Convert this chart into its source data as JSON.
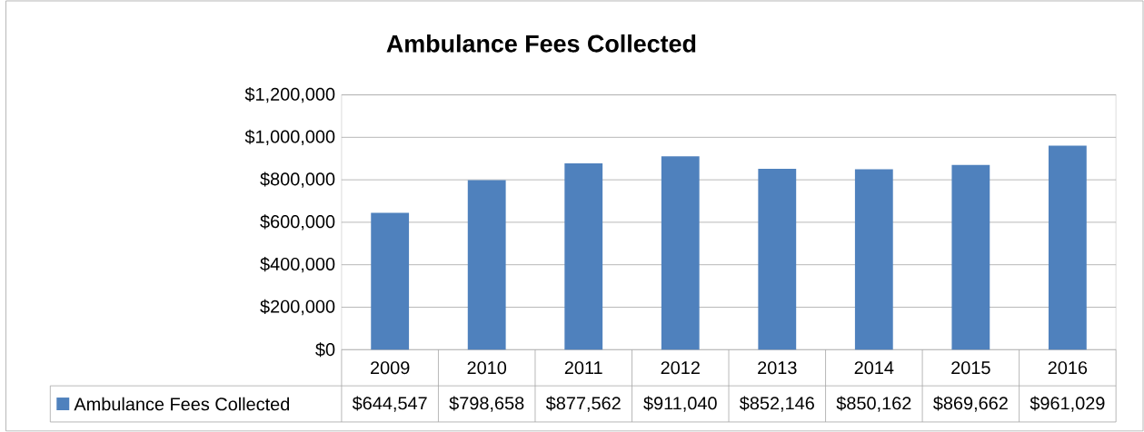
{
  "chart_data": {
    "type": "bar",
    "title": "Ambulance Fees Collected",
    "categories": [
      "2009",
      "2010",
      "2011",
      "2012",
      "2013",
      "2014",
      "2015",
      "2016"
    ],
    "series": [
      {
        "name": "Ambulance Fees Collected",
        "color": "#4f81bd",
        "values": [
          644547,
          798658,
          877562,
          911040,
          852146,
          850162,
          869662,
          961029
        ],
        "value_labels": [
          "$644,547",
          "$798,658",
          "$877,562",
          "$911,040",
          "$852,146",
          "$850,162",
          "$869,662",
          "$961,029"
        ]
      }
    ],
    "ylim": [
      0,
      1200000
    ],
    "yticks": [
      {
        "value": 0,
        "label": "$0"
      },
      {
        "value": 200000,
        "label": "$200,000"
      },
      {
        "value": 400000,
        "label": "$400,000"
      },
      {
        "value": 600000,
        "label": "$600,000"
      },
      {
        "value": 800000,
        "label": "$800,000"
      },
      {
        "value": 1000000,
        "label": "$1,000,000"
      },
      {
        "value": 1200000,
        "label": "$1,200,000"
      }
    ],
    "grid": "y",
    "legend": "bottom"
  }
}
